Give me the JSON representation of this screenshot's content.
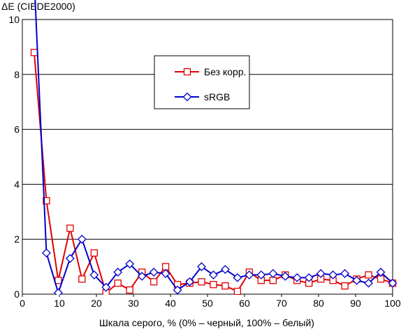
{
  "chart_data": {
    "type": "line",
    "ylabel": "ΔE (CIEDE2000)",
    "xlabel": "Шкала серого, % (0% – черный, 100% – белый)",
    "xlim": [
      0,
      100
    ],
    "ylim": [
      0,
      10
    ],
    "xticks": [
      0,
      10,
      20,
      30,
      40,
      50,
      60,
      70,
      80,
      90,
      100
    ],
    "yticks": [
      0,
      2,
      4,
      6,
      8,
      10
    ],
    "grid": "horizontal",
    "legend_position": "upper-center",
    "series": [
      {
        "name": "Без корр.",
        "color": "#e00000",
        "marker": "square",
        "x": [
          3.2,
          6.5,
          9.7,
          12.9,
          16.1,
          19.4,
          22.6,
          25.8,
          29.0,
          32.3,
          35.5,
          38.7,
          41.9,
          45.2,
          48.4,
          51.6,
          54.8,
          58.1,
          61.3,
          64.5,
          67.7,
          71.0,
          74.2,
          77.4,
          80.6,
          83.9,
          87.1,
          90.3,
          93.5,
          96.8,
          100.0
        ],
        "y": [
          8.8,
          3.4,
          0.5,
          2.4,
          0.55,
          1.5,
          0.05,
          0.4,
          0.15,
          0.8,
          0.45,
          1.0,
          0.35,
          0.4,
          0.45,
          0.35,
          0.3,
          0.1,
          0.8,
          0.5,
          0.5,
          0.7,
          0.5,
          0.4,
          0.55,
          0.5,
          0.3,
          0.55,
          0.7,
          0.55,
          0.4
        ]
      },
      {
        "name": "sRGB",
        "color": "#0000cc",
        "marker": "diamond",
        "x": [
          3.2,
          6.5,
          9.7,
          12.9,
          16.1,
          19.4,
          22.6,
          25.8,
          29.0,
          32.3,
          35.5,
          38.7,
          41.9,
          45.2,
          48.4,
          51.6,
          54.8,
          58.1,
          61.3,
          64.5,
          67.7,
          71.0,
          74.2,
          77.4,
          80.6,
          83.9,
          87.1,
          90.3,
          93.5,
          96.8,
          100.0
        ],
        "y": [
          11.5,
          1.5,
          0.05,
          1.3,
          2.0,
          0.7,
          0.25,
          0.8,
          1.1,
          0.65,
          0.8,
          0.75,
          0.15,
          0.45,
          1.0,
          0.7,
          0.9,
          0.6,
          0.7,
          0.7,
          0.75,
          0.65,
          0.6,
          0.6,
          0.75,
          0.7,
          0.75,
          0.5,
          0.4,
          0.8,
          0.4
        ]
      }
    ]
  }
}
